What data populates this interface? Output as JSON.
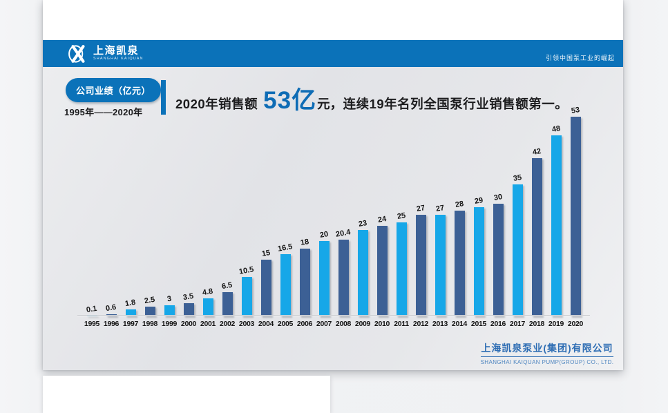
{
  "header": {
    "logo_text": "上海凯泉",
    "logo_subtext": "SHANGHAI KAIQUAN",
    "slogan": "引领中国泵工业的崛起"
  },
  "badge": {
    "label": "公司业绩（亿元）",
    "period": "1995年——2020年"
  },
  "headline": {
    "prefix": "2020年销售额",
    "highlight": "53亿",
    "unit": "元",
    "suffix": "，连续19年名列全国泵行业销售额第一。"
  },
  "footer": {
    "company_cn": "上海凯泉泵业(集团)有限公司",
    "company_en": "SHANGHAI KAIQUAN PUMP(GROUP) CO., LTD."
  },
  "colors": {
    "header_blue": "#0B72B9",
    "headline_blue": "#0E6CB5",
    "footer_blue": "#2F6EB4"
  },
  "chart_data": {
    "type": "bar",
    "title": "公司业绩（亿元）",
    "unit": "亿元",
    "categories": [
      "1995",
      "1996",
      "1997",
      "1998",
      "1999",
      "2000",
      "2001",
      "2002",
      "2003",
      "2004",
      "2005",
      "2006",
      "2007",
      "2008",
      "2009",
      "2010",
      "2011",
      "2012",
      "2013",
      "2014",
      "2015",
      "2016",
      "2017",
      "2018",
      "2019",
      "2020"
    ],
    "values": [
      0.1,
      0.6,
      1.8,
      2.5,
      3,
      3.5,
      4.8,
      6.5,
      10.5,
      15,
      16.5,
      18,
      20,
      20.4,
      23,
      24,
      25,
      27,
      27,
      28,
      29,
      30,
      35,
      42,
      48,
      53
    ],
    "ylim": [
      0,
      55
    ],
    "grid": false,
    "legend": false,
    "data_labels": true,
    "colors": {
      "even_years": "#3C6095",
      "odd_years": "#16A7E8"
    },
    "bar_color_rule": "even years navy, odd years cyan"
  }
}
